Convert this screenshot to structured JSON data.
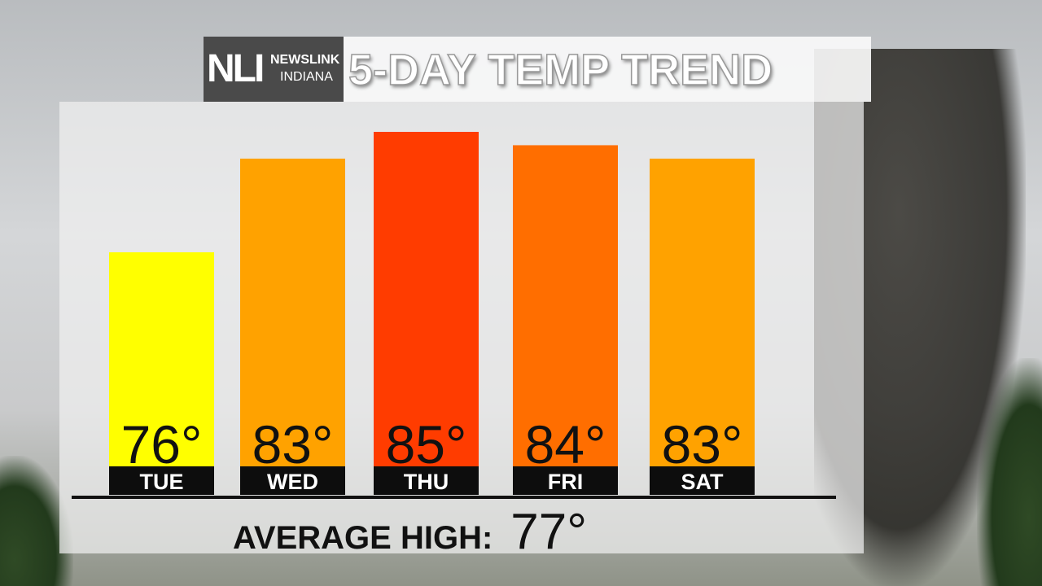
{
  "logo": {
    "mark": "NLI",
    "line1": "NEWSLINK",
    "line2": "INDIANA"
  },
  "header": {
    "title": "5-DAY TEMP TREND"
  },
  "chart_data": {
    "type": "bar",
    "title": "5-DAY TEMP TREND",
    "categories": [
      "TUE",
      "WED",
      "THU",
      "FRI",
      "SAT"
    ],
    "values": [
      76,
      83,
      85,
      84,
      83
    ],
    "labels": [
      "76°",
      "83°",
      "85°",
      "84°",
      "83°"
    ],
    "colors": [
      "#ffff00",
      "#ffa200",
      "#ff3c00",
      "#ff6e00",
      "#ffa200"
    ],
    "ylim": [
      60,
      86
    ],
    "grid": false
  },
  "footer": {
    "label": "AVERAGE HIGH:",
    "value": "77°"
  }
}
